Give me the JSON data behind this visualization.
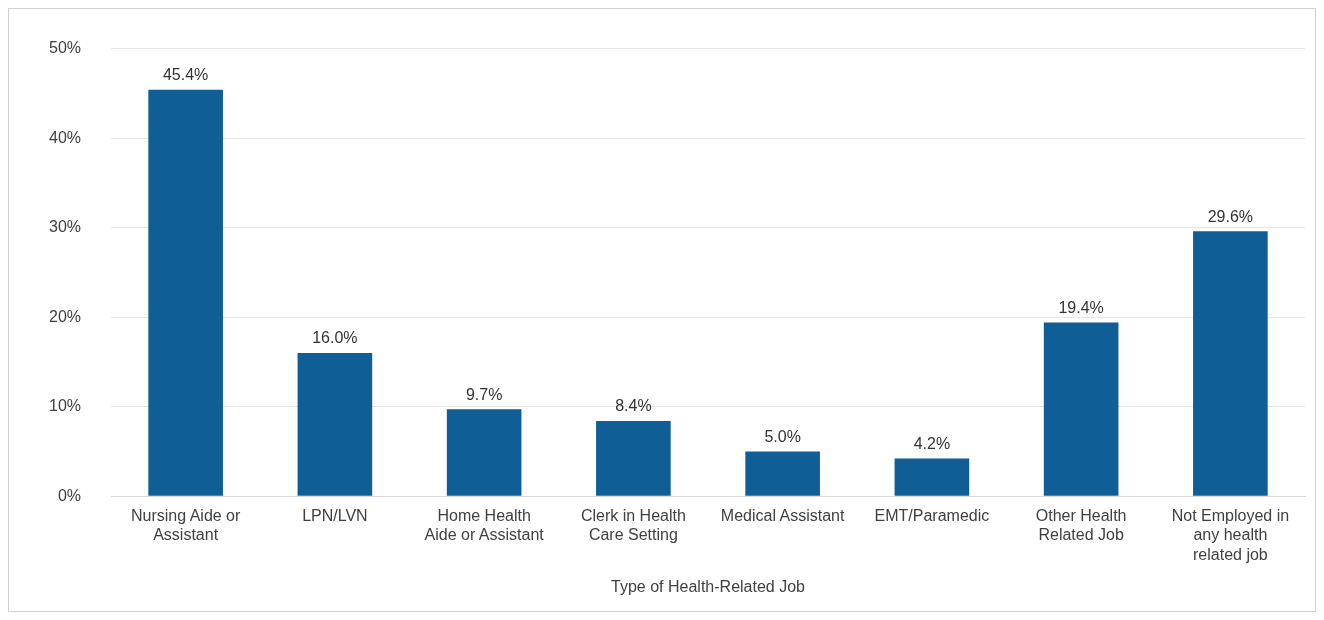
{
  "chart_data": {
    "type": "bar",
    "xlabel": "Type of Health-Related Job",
    "categories": [
      "Nursing Aide or Assistant",
      "LPN/LVN",
      "Home Health Aide or Assistant",
      "Clerk in Health Care Setting",
      "Medical Assistant",
      "EMT/Paramedic",
      "Other Health Related Job",
      "Not Employed in any health related job"
    ],
    "values": [
      45.4,
      16.0,
      9.7,
      8.4,
      5.0,
      4.2,
      19.4,
      29.6
    ],
    "value_labels": [
      "45.4%",
      "16.0%",
      "9.7%",
      "8.4%",
      "5.0%",
      "4.2%",
      "19.4%",
      "29.6%"
    ],
    "color": "#0f5f96",
    "ylim": [
      0,
      50
    ],
    "yticks": [
      {
        "value": 0,
        "label": "0%"
      },
      {
        "value": 10,
        "label": "10%"
      },
      {
        "value": 20,
        "label": "20%"
      },
      {
        "value": 30,
        "label": "30%"
      },
      {
        "value": 40,
        "label": "40%"
      },
      {
        "value": 50,
        "label": "50%"
      }
    ],
    "grid": "y"
  }
}
